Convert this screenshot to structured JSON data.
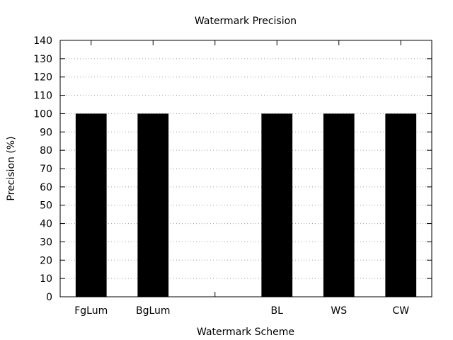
{
  "chart_data": {
    "type": "bar",
    "title": "Watermark Precision",
    "xlabel": "Watermark Scheme",
    "ylabel": "Precision (%)",
    "ylim": [
      0,
      140
    ],
    "yticks": [
      0,
      10,
      20,
      30,
      40,
      50,
      60,
      70,
      80,
      90,
      100,
      110,
      120,
      130,
      140
    ],
    "grid": true,
    "categories": [
      "FgLum",
      "BgLum",
      "",
      "BL",
      "WS",
      "CW"
    ],
    "values": [
      100,
      100,
      null,
      100,
      100,
      100
    ],
    "colors": {
      "bar": "#000000",
      "grid": "#a0a0a0",
      "axis": "#000000"
    }
  }
}
